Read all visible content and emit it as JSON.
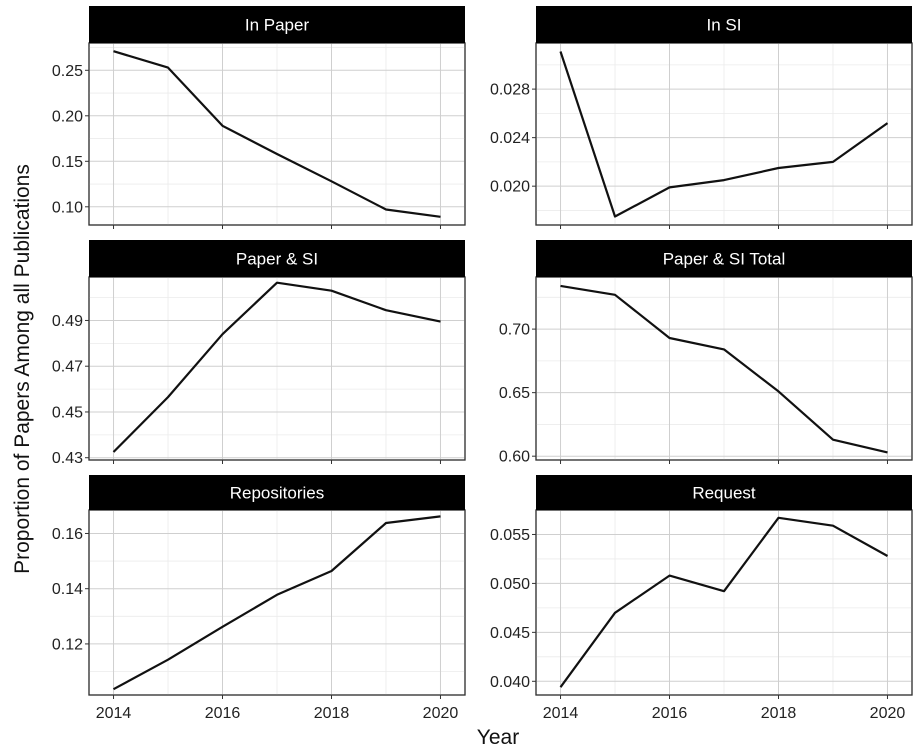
{
  "chart_data": {
    "type": "line",
    "layout": "facet-grid",
    "ncol": 2,
    "xlabel": "Year",
    "ylabel": "Proportion of Papers Among all Publications",
    "x": [
      2014,
      2015,
      2016,
      2017,
      2018,
      2019,
      2020
    ],
    "x_ticks": [
      2014,
      2016,
      2018,
      2020
    ],
    "x_tick_labels": [
      "2014",
      "2016",
      "2018",
      "2020"
    ],
    "grid": true,
    "facets": [
      {
        "title": "In Paper",
        "values": [
          0.271,
          0.253,
          0.189,
          0.158,
          0.128,
          0.097,
          0.089
        ],
        "ylim": [
          0.08,
          0.28
        ],
        "y_ticks": [
          0.1,
          0.15,
          0.2,
          0.25
        ],
        "y_tick_labels": [
          "0.10",
          "0.15",
          "0.20",
          "0.25"
        ]
      },
      {
        "title": "In SI",
        "values": [
          0.0311,
          0.0175,
          0.0199,
          0.0205,
          0.0215,
          0.022,
          0.0252
        ],
        "ylim": [
          0.0168,
          0.0318
        ],
        "y_ticks": [
          0.02,
          0.024,
          0.028
        ],
        "y_tick_labels": [
          "0.020",
          "0.024",
          "0.028"
        ]
      },
      {
        "title": "Paper & SI",
        "values": [
          0.4325,
          0.4565,
          0.484,
          0.5065,
          0.503,
          0.4945,
          0.4895
        ],
        "ylim": [
          0.429,
          0.509
        ],
        "y_ticks": [
          0.43,
          0.45,
          0.47,
          0.49
        ],
        "y_tick_labels": [
          "0.43",
          "0.45",
          "0.47",
          "0.49"
        ]
      },
      {
        "title": "Paper & SI Total",
        "values": [
          0.734,
          0.727,
          0.693,
          0.684,
          0.651,
          0.613,
          0.603
        ],
        "ylim": [
          0.597,
          0.741
        ],
        "y_ticks": [
          0.6,
          0.65,
          0.7
        ],
        "y_tick_labels": [
          "0.60",
          "0.65",
          "0.70"
        ]
      },
      {
        "title": "Repositories",
        "values": [
          0.1036,
          0.1143,
          0.1262,
          0.1378,
          0.1464,
          0.1638,
          0.1662
        ],
        "ylim": [
          0.1015,
          0.1685
        ],
        "y_ticks": [
          0.12,
          0.14,
          0.16
        ],
        "y_tick_labels": [
          "0.12",
          "0.14",
          "0.16"
        ]
      },
      {
        "title": "Request",
        "values": [
          0.0394,
          0.047,
          0.0508,
          0.0492,
          0.0567,
          0.0559,
          0.0528
        ],
        "ylim": [
          0.0386,
          0.0575
        ],
        "y_ticks": [
          0.04,
          0.045,
          0.05,
          0.055
        ],
        "y_tick_labels": [
          "0.040",
          "0.045",
          "0.050",
          "0.055"
        ]
      }
    ]
  }
}
